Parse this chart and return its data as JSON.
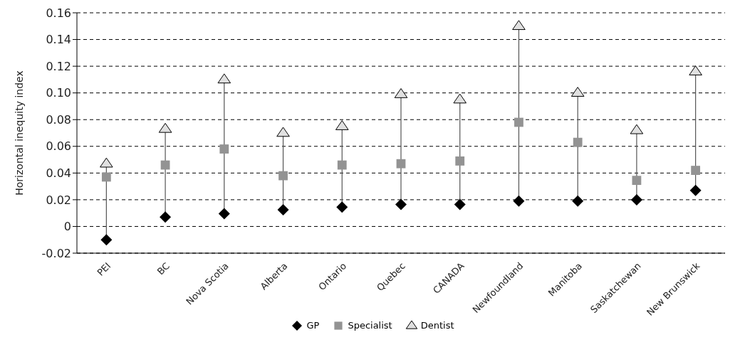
{
  "chart_data": {
    "type": "scatter",
    "ylabel": "Horizontal inequity index",
    "categories": [
      "PEI",
      "BC",
      "Nova Scotia",
      "Alberta",
      "Ontario",
      "Quebec",
      "CANADA",
      "Newfoundland",
      "Manitoba",
      "Saskatchewan",
      "New Brunswick"
    ],
    "series": [
      {
        "name": "GP",
        "color": "#000000",
        "marker": "diamond",
        "values": [
          -0.01,
          0.007,
          0.0095,
          0.0125,
          0.0145,
          0.0165,
          0.0165,
          0.019,
          0.019,
          0.02,
          0.027
        ]
      },
      {
        "name": "Specialist",
        "color": "#939393",
        "marker": "square",
        "values": [
          0.037,
          0.046,
          0.058,
          0.038,
          0.046,
          0.047,
          0.049,
          0.078,
          0.063,
          0.0345,
          0.042
        ]
      },
      {
        "name": "Dentist",
        "color": "#e0e0e0",
        "marker": "triangle",
        "values": [
          0.047,
          0.073,
          0.11,
          0.07,
          0.075,
          0.099,
          0.095,
          0.15,
          0.1,
          0.072,
          0.116
        ]
      }
    ],
    "ylim": [
      -0.02,
      0.16
    ],
    "yticks": [
      {
        "value": -0.02,
        "label": "-0.02"
      },
      {
        "value": 0,
        "label": "0"
      },
      {
        "value": 0.02,
        "label": "0.02"
      },
      {
        "value": 0.04,
        "label": "0.04"
      },
      {
        "value": 0.06,
        "label": "0.06"
      },
      {
        "value": 0.08,
        "label": "0.08"
      },
      {
        "value": 0.1,
        "label": "0.10"
      },
      {
        "value": 0.12,
        "label": "0.12"
      },
      {
        "value": 0.14,
        "label": "0.14"
      },
      {
        "value": 0.16,
        "label": "0.16"
      }
    ],
    "grid": "y",
    "legend": "bottom"
  }
}
